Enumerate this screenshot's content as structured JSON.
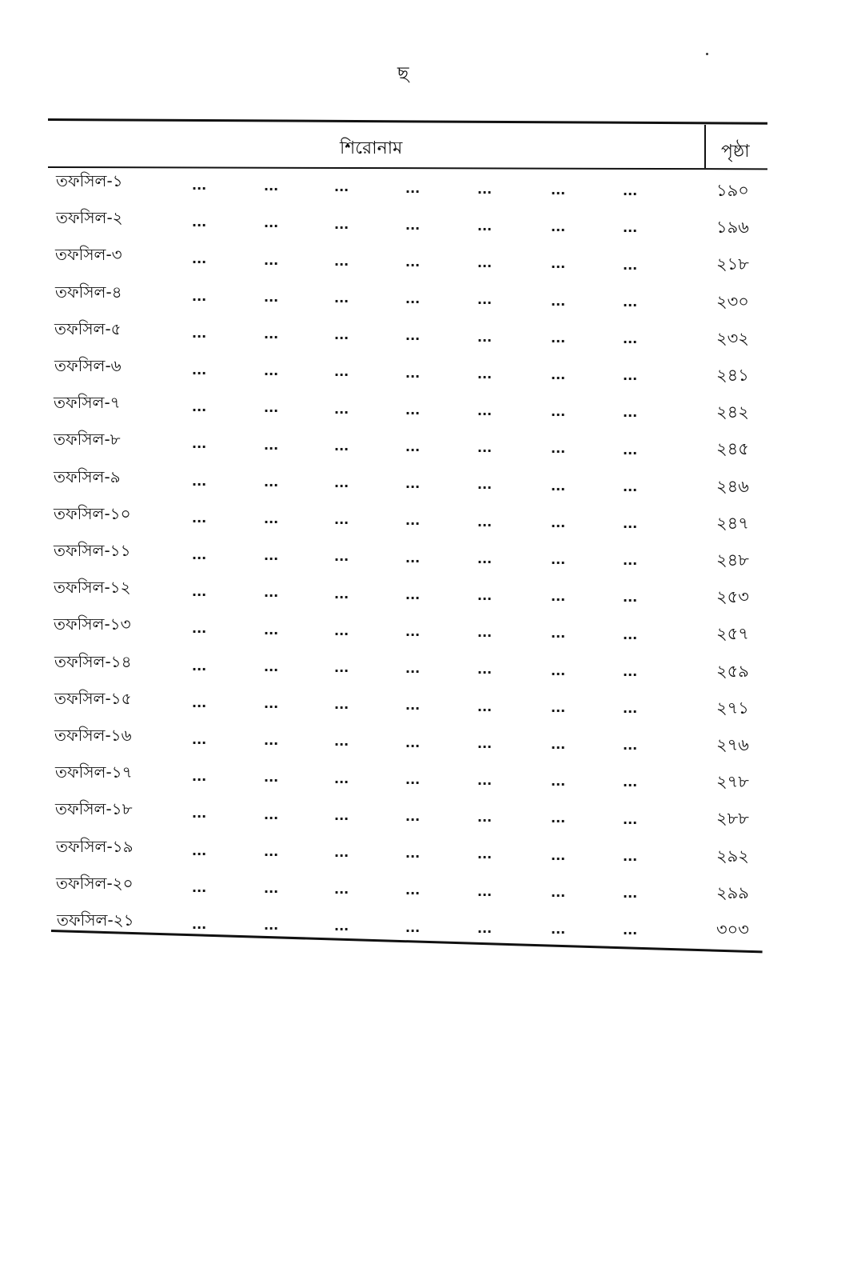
{
  "page_marker": "ছ",
  "header": {
    "title": "শিরোনাম",
    "page": "পৃষ্ঠা"
  },
  "leader": "...",
  "rows": [
    {
      "label": "তফসিল-১",
      "page": "১৯০"
    },
    {
      "label": "তফসিল-২",
      "page": "১৯৬"
    },
    {
      "label": "তফসিল-৩",
      "page": "২১৮"
    },
    {
      "label": "তফসিল-৪",
      "page": "২৩০"
    },
    {
      "label": "তফসিল-৫",
      "page": "২৩২"
    },
    {
      "label": "তফসিল-৬",
      "page": "২৪১"
    },
    {
      "label": "তফসিল-৭",
      "page": "২৪২"
    },
    {
      "label": "তফসিল-৮",
      "page": "২৪৫"
    },
    {
      "label": "তফসিল-৯",
      "page": "২৪৬"
    },
    {
      "label": "তফসিল-১০",
      "page": "২৪৭"
    },
    {
      "label": "তফসিল-১১",
      "page": "২৪৮"
    },
    {
      "label": "তফসিল-১২",
      "page": "২৫৩"
    },
    {
      "label": "তফসিল-১৩",
      "page": "২৫৭"
    },
    {
      "label": "তফসিল-১৪",
      "page": "২৫৯"
    },
    {
      "label": "তফসিল-১৫",
      "page": "২৭১"
    },
    {
      "label": "তফসিল-১৬",
      "page": "২৭৬"
    },
    {
      "label": "তফসিল-১৭",
      "page": "২৭৮"
    },
    {
      "label": "তফসিল-১৮",
      "page": "২৮৮"
    },
    {
      "label": "তফসিল-১৯",
      "page": "২৯২"
    },
    {
      "label": "তফসিল-২০",
      "page": "২৯৯"
    },
    {
      "label": "তফসিল-২১",
      "page": "৩০৩"
    }
  ]
}
